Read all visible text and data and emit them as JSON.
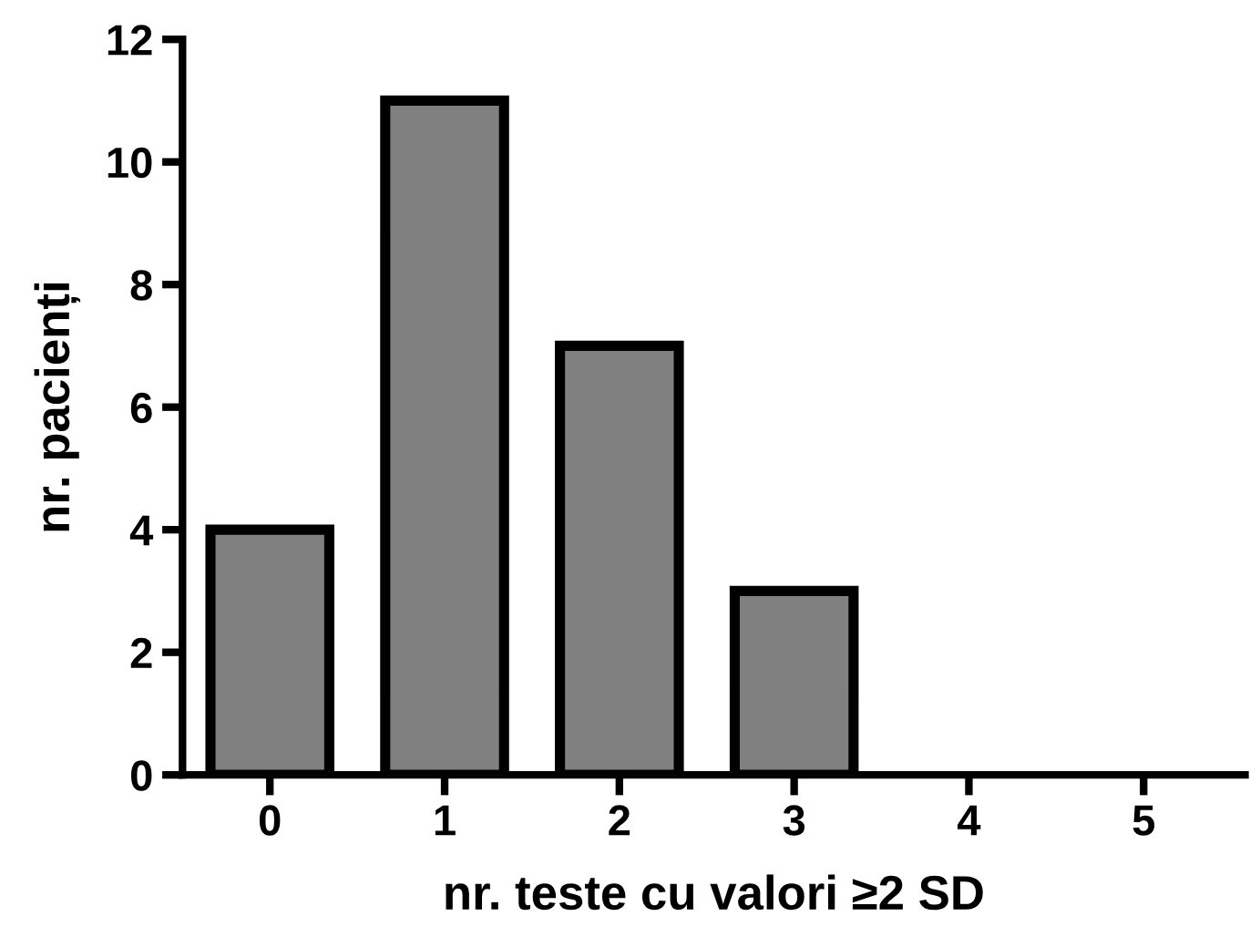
{
  "chart_data": {
    "type": "bar",
    "xlabel": "nr. teste cu valori ≥2 SD",
    "ylabel": "nr. pacienți",
    "categories": [
      "0",
      "1",
      "2",
      "3",
      "4",
      "5"
    ],
    "values": [
      4,
      11,
      7,
      3,
      0,
      0
    ],
    "color": "#808080",
    "ylim": [
      0,
      12
    ],
    "yticks": [
      0,
      2,
      4,
      6,
      8,
      10,
      12
    ],
    "grid": false
  }
}
